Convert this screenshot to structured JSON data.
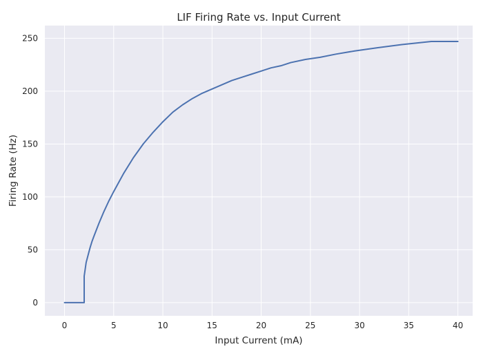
{
  "chart_data": {
    "type": "line",
    "title": "LIF Firing Rate vs. Input Current",
    "xlabel": "Input Current (mA)",
    "ylabel": "Firing Rate (Hz)",
    "xlim": [
      -2,
      41.5
    ],
    "ylim": [
      -12.5,
      262
    ],
    "xticks": [
      0,
      5,
      10,
      15,
      20,
      25,
      30,
      35,
      40
    ],
    "yticks": [
      0,
      50,
      100,
      150,
      200,
      250
    ],
    "grid": true,
    "line_color": "#4c72b0",
    "background_color": "#eaeaf2",
    "grid_color": "#ffffff",
    "series": [
      {
        "x": [
          0,
          2.0,
          2.0,
          2.2,
          2.4,
          2.6,
          2.8,
          3.0,
          3.5,
          4.0,
          4.5,
          5.0,
          6.0,
          7.0,
          8.0,
          9.0,
          10.0,
          11.0,
          12.0,
          13.0,
          14.0,
          15.0,
          16.0,
          17.0,
          18.0,
          19.0,
          20.0,
          21.0,
          22.0,
          23.0,
          24.5,
          26.0,
          27.6,
          29.5,
          31.8,
          34.3,
          37.3,
          40.0
        ],
        "y": [
          0,
          0,
          25,
          38,
          45,
          52,
          58,
          63,
          75,
          86,
          96,
          105,
          122,
          137,
          150,
          161,
          171,
          180,
          187,
          193,
          198,
          202,
          206,
          210,
          213,
          216,
          219,
          222,
          224,
          227,
          230,
          232,
          235,
          238,
          241,
          244,
          247,
          247
        ]
      }
    ]
  }
}
